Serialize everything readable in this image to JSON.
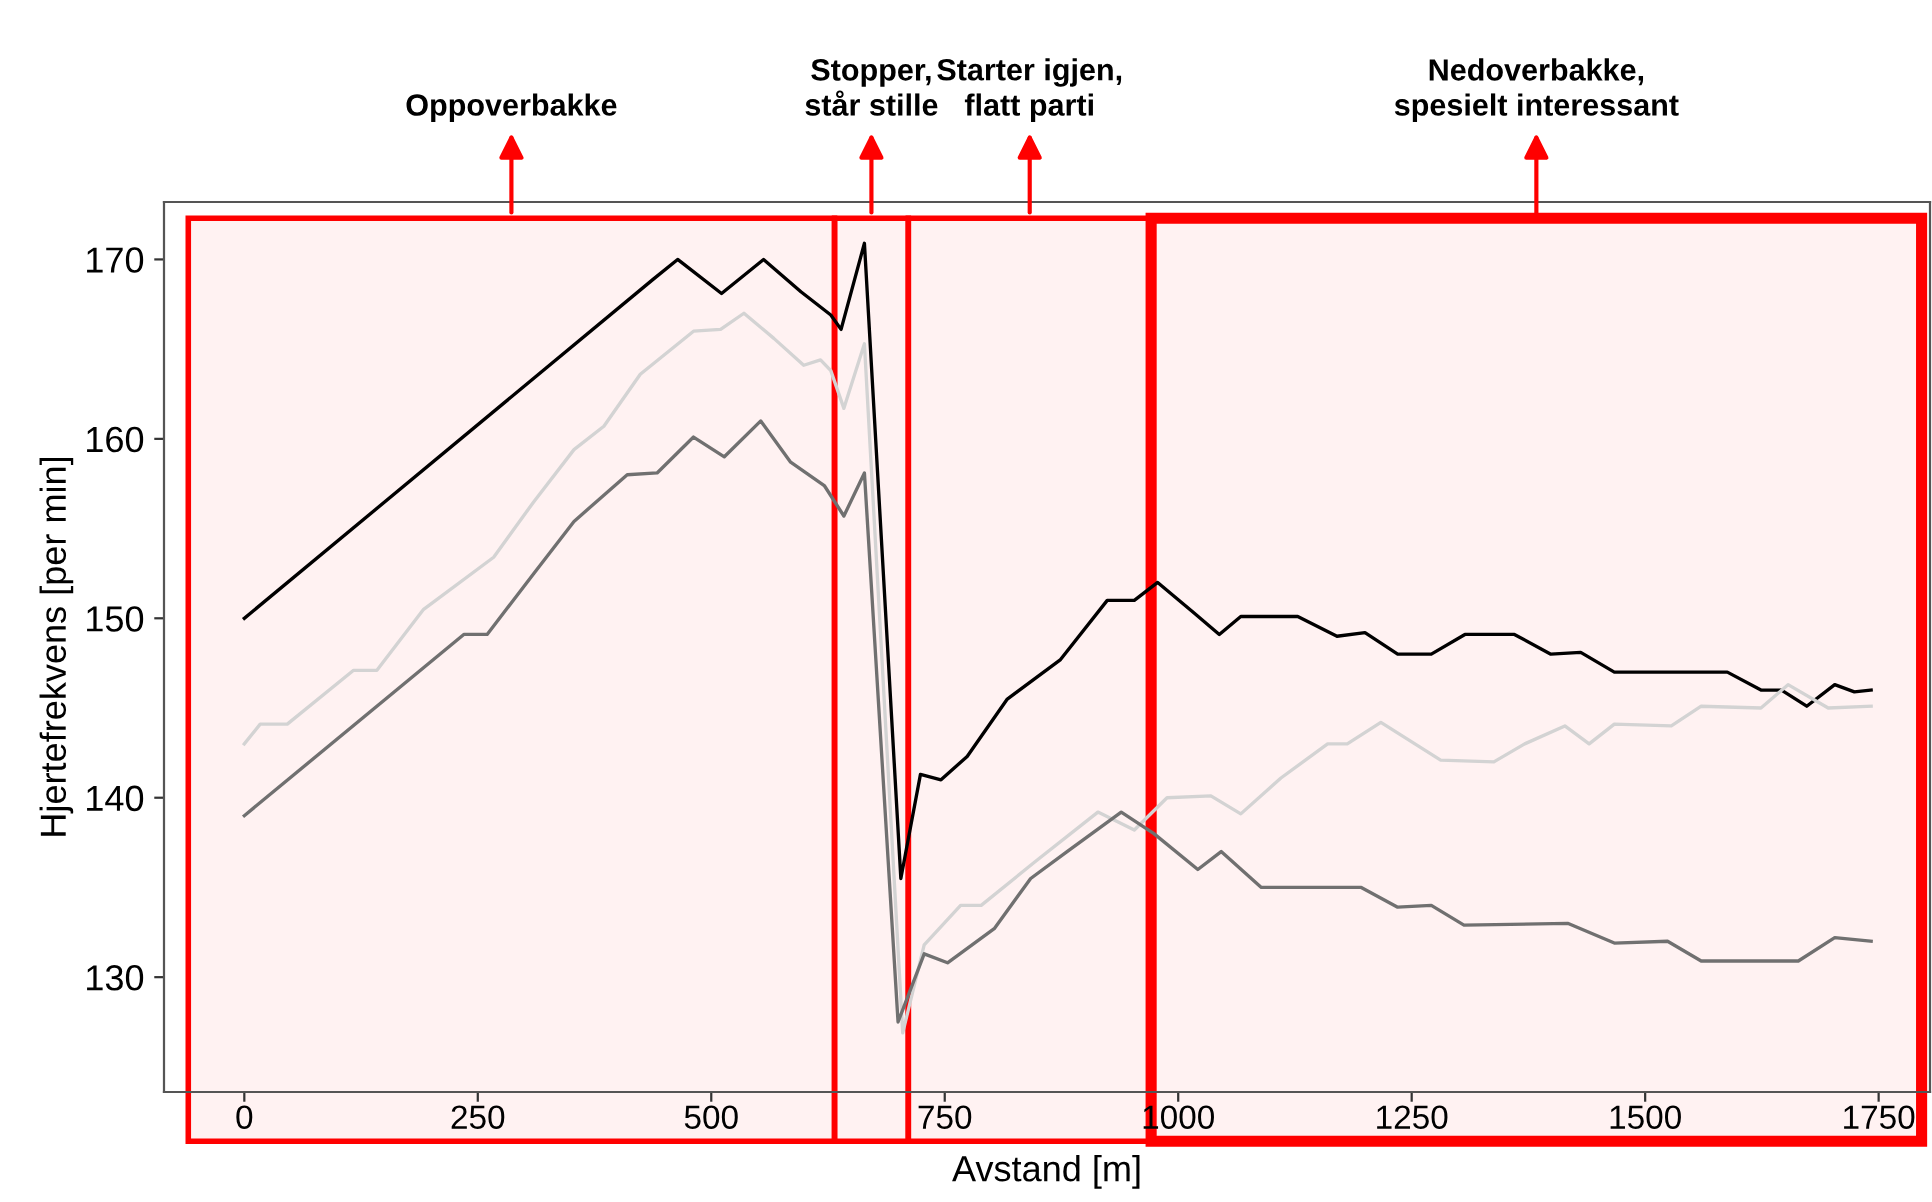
{
  "chart_data": {
    "type": "line",
    "xlabel": "Avstand [m]",
    "ylabel": "Hjertefrekvens [per min]",
    "xlim": [
      -86,
      1805
    ],
    "ylim": [
      123.6,
      173.2
    ],
    "xticks": [
      0,
      250,
      500,
      750,
      1000,
      1250,
      1500,
      1750
    ],
    "yticks": [
      130,
      140,
      150,
      160,
      170
    ],
    "grid": false,
    "legend": false,
    "line_style": "solid",
    "marker": "none",
    "series": [
      {
        "color": "#000000",
        "x": [
          0,
          438,
          464,
          511,
          556,
          596,
          628,
          639,
          664,
          703,
          724,
          746,
          774,
          817,
          874,
          924,
          953,
          978,
          1017,
          1044,
          1067,
          1128,
          1170,
          1200,
          1235,
          1271,
          1307,
          1360,
          1399,
          1431,
          1467,
          1588,
          1624,
          1646,
          1673,
          1703,
          1724,
          1742
        ],
        "values": [
          150,
          168.9,
          170,
          168.1,
          170,
          168.2,
          166.9,
          166.1,
          170.9,
          135.5,
          141.3,
          141,
          142.3,
          145.5,
          147.7,
          151,
          151,
          152,
          150.3,
          149.1,
          150.1,
          150.1,
          149,
          149.2,
          148,
          148,
          149.1,
          149.1,
          148,
          148.1,
          147,
          147,
          146,
          146,
          145.1,
          146.3,
          145.9,
          146
        ]
      },
      {
        "color": "#d3d3d3",
        "x": [
          0,
          17,
          46,
          117,
          142,
          192,
          267,
          310,
          353,
          385,
          424,
          481,
          510,
          535,
          567,
          599,
          617,
          628,
          642,
          664,
          705,
          728,
          767,
          789,
          846,
          914,
          953,
          988,
          1035,
          1067,
          1110,
          1160,
          1181,
          1217,
          1281,
          1338,
          1371,
          1414,
          1440,
          1467,
          1528,
          1560,
          1624,
          1653,
          1696,
          1742
        ],
        "values": [
          143,
          144.1,
          144.1,
          147.1,
          147.1,
          150.5,
          153.4,
          156.5,
          159.4,
          160.7,
          163.6,
          166,
          166.1,
          167,
          165.6,
          164.1,
          164.4,
          163.8,
          161.7,
          165.3,
          126.9,
          131.8,
          134,
          134,
          136.4,
          139.2,
          138.2,
          140,
          140.1,
          139.1,
          141.1,
          143,
          143,
          144.2,
          142.1,
          142,
          143,
          144,
          143,
          144.1,
          144,
          145.1,
          145,
          146.3,
          145,
          145.1
        ]
      },
      {
        "color": "#707070",
        "x": [
          0,
          235,
          260,
          310,
          353,
          410,
          442,
          481,
          514,
          553,
          585,
          621,
          642,
          664,
          700,
          728,
          753,
          803,
          842,
          881,
          939,
          974,
          1021,
          1046,
          1089,
          1196,
          1235,
          1271,
          1306,
          1417,
          1467,
          1524,
          1560,
          1664,
          1703,
          1742
        ],
        "values": [
          139,
          149.1,
          149.1,
          152.5,
          155.4,
          158,
          158.1,
          160.1,
          159,
          161,
          158.7,
          157.4,
          155.7,
          158.1,
          127.5,
          131.3,
          130.8,
          132.7,
          135.5,
          137,
          139.2,
          138,
          136,
          137,
          135,
          135,
          133.9,
          134,
          132.9,
          133,
          131.9,
          132,
          130.9,
          130.9,
          132.2,
          132
        ]
      }
    ],
    "bands": [
      {
        "axis": "x",
        "from": -60,
        "to": 632,
        "label": "Oppoverbakke",
        "color": "#ff0000"
      },
      {
        "axis": "x",
        "from": 632,
        "to": 711,
        "label": "Stopper,\nstår stille",
        "color": "#ff0000"
      },
      {
        "axis": "x",
        "from": 711,
        "to": 971,
        "label": "Starter igjen,\nflatt parti",
        "color": "#ff0000"
      },
      {
        "axis": "x",
        "from": 971,
        "to": 1796,
        "label": "Nedoverbakke,\nspesielt interessant",
        "color": "#ff0000"
      }
    ]
  }
}
